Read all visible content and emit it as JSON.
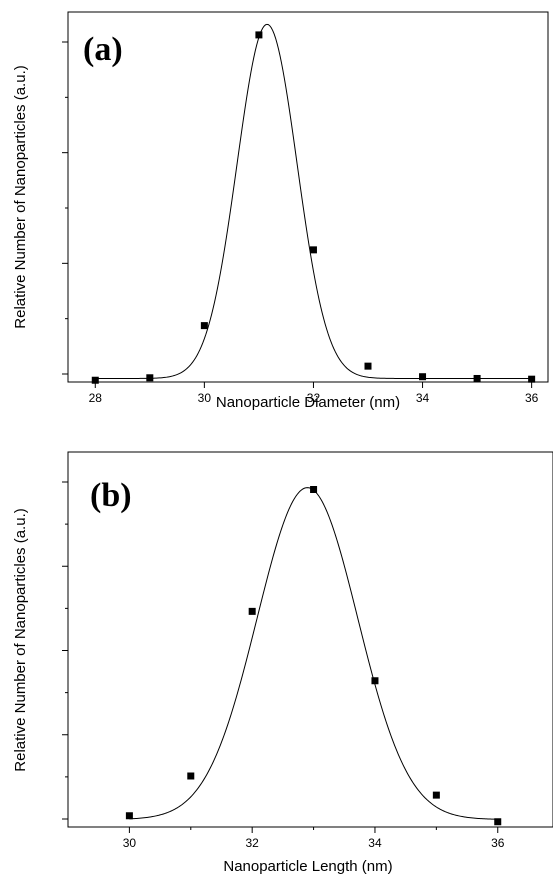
{
  "chart_data": [
    {
      "type": "scatter",
      "panel_label": "(a)",
      "xlabel": "Nanoparticle Diameter (nm)",
      "ylabel": "Relative Number of Nanoparticles (a.u.)",
      "xlim": [
        27.5,
        36.3
      ],
      "ylim": [
        0,
        1.05
      ],
      "xticks": [
        28,
        30,
        32,
        34,
        36
      ],
      "x_tick_labels": [
        "28",
        "30",
        "32",
        "34",
        "36"
      ],
      "y_tick_labels_shown": false,
      "series": [
        {
          "marker": "square",
          "points": [
            {
              "x": 28,
              "y": 0.005
            },
            {
              "x": 29,
              "y": 0.012
            },
            {
              "x": 30,
              "y": 0.16
            },
            {
              "x": 31,
              "y": 0.985
            },
            {
              "x": 32,
              "y": 0.375
            },
            {
              "x": 33,
              "y": 0.045
            },
            {
              "x": 34,
              "y": 0.015
            },
            {
              "x": 35,
              "y": 0.01
            },
            {
              "x": 36,
              "y": 0.008
            }
          ]
        }
      ],
      "fit": {
        "type": "gaussian",
        "baseline": 0.01,
        "amplitude": 1.005,
        "center": 31.15,
        "sigma": 0.55
      }
    },
    {
      "type": "scatter",
      "panel_label": "(b)",
      "xlabel": "Nanoparticle Length (nm)",
      "ylabel": "Relative Number of Nanoparticles (a.u.)",
      "xlim": [
        29.0,
        36.9
      ],
      "ylim": [
        0,
        1.0
      ],
      "xticks": [
        30,
        31,
        32,
        33,
        34,
        35,
        36
      ],
      "x_tick_labels": [
        "30",
        "",
        "32",
        "",
        "34",
        "",
        "36"
      ],
      "y_tick_labels_shown": false,
      "series": [
        {
          "marker": "square",
          "points": [
            {
              "x": 30,
              "y": 0.03
            },
            {
              "x": 31,
              "y": 0.136
            },
            {
              "x": 32,
              "y": 0.575
            },
            {
              "x": 33,
              "y": 0.9
            },
            {
              "x": 34,
              "y": 0.39
            },
            {
              "x": 35,
              "y": 0.085
            },
            {
              "x": 36,
              "y": 0.014
            }
          ]
        }
      ],
      "fit": {
        "type": "gaussian",
        "baseline": 0.02,
        "amplitude": 0.885,
        "center": 32.9,
        "sigma": 0.82
      }
    }
  ]
}
